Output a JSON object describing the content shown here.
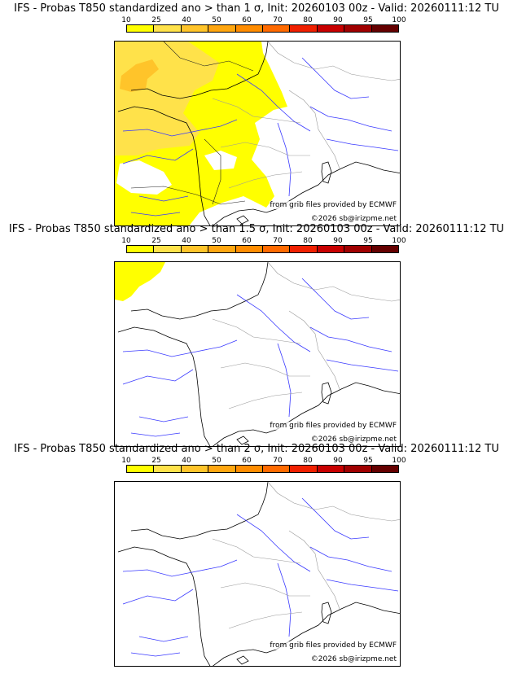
{
  "legend": {
    "ticks": [
      "10",
      "25",
      "40",
      "50",
      "60",
      "70",
      "80",
      "90",
      "95",
      "100"
    ],
    "colors": [
      "#ffff00",
      "#ffe24a",
      "#ffc42a",
      "#ffa610",
      "#ff8c00",
      "#ff6a00",
      "#f02000",
      "#c80000",
      "#a00000",
      "#650000"
    ]
  },
  "panels": [
    {
      "title": "IFS - Probas T850  standardized ano > than 1 σ, Init: 20260103 00z - Valid: 20260111:12 TU",
      "credit_source": "from grib files provided by ECMWF",
      "credit_copyright": "©2026 sb@irizpme.net"
    },
    {
      "title": "IFS - Probas T850  standardized ano > than 1.5 σ, Init: 20260103 00z - Valid: 20260111:12 TU",
      "credit_source": "from grib files provided by ECMWF",
      "credit_copyright": "©2026 sb@irizpme.net"
    },
    {
      "title": "IFS - Probas T850  standardized ano > than 2 σ, Init: 20260103 00z - Valid: 20260111:12 TU",
      "credit_source": "from grib files provided by ECMWF",
      "credit_copyright": "©2026 sb@irizpme.net"
    }
  ]
}
